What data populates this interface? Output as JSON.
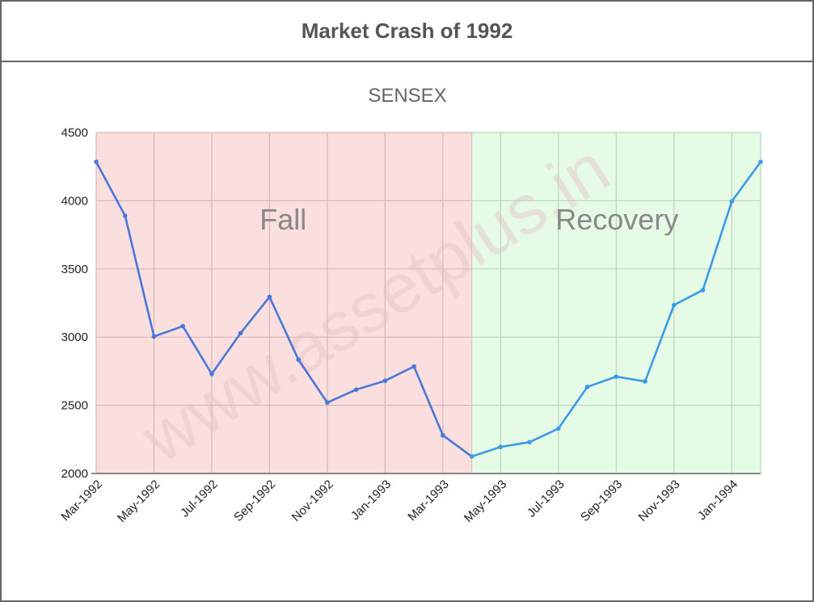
{
  "header": {
    "title": "Market Crash of 1992"
  },
  "watermark": "www.assetplus.in",
  "chart_data": {
    "type": "line",
    "title": "SENSEX",
    "xlabel": "",
    "ylabel": "",
    "ylim": [
      2000,
      4500
    ],
    "yticks": [
      2000,
      2500,
      3000,
      3500,
      4000,
      4500
    ],
    "x_tick_labels": [
      "Mar-1992",
      "May-1992",
      "Jul-1992",
      "Sep-1992",
      "Nov-1992",
      "Jan-1993",
      "Mar-1993",
      "May-1993",
      "Jul-1993",
      "Sep-1993",
      "Nov-1993",
      "Jan-1994"
    ],
    "x": [
      "Mar-1992",
      "Apr-1992",
      "May-1992",
      "Jun-1992",
      "Jul-1992",
      "Aug-1992",
      "Sep-1992",
      "Oct-1992",
      "Nov-1992",
      "Dec-1992",
      "Jan-1993",
      "Feb-1993",
      "Mar-1993",
      "Apr-1993",
      "May-1993",
      "Jun-1993",
      "Jul-1993",
      "Aug-1993",
      "Sep-1993",
      "Oct-1993",
      "Nov-1993",
      "Dec-1993",
      "Jan-1994",
      "Feb-1994"
    ],
    "values": [
      4285,
      3890,
      3005,
      3080,
      2730,
      3030,
      3295,
      2835,
      2520,
      2615,
      2680,
      2785,
      2280,
      2125,
      2195,
      2230,
      2330,
      2635,
      2710,
      2675,
      3235,
      3345,
      3995,
      4285
    ],
    "grid": true,
    "regions": [
      {
        "label": "Fall",
        "from": "Mar-1992",
        "to": "Apr-1993",
        "color": "#fbdfdf"
      },
      {
        "label": "Recovery",
        "from": "Apr-1993",
        "to": "Feb-1994",
        "color": "#e6fbe6"
      }
    ],
    "line_colors": {
      "fall": "#4a77d8",
      "recovery": "#3a9be8"
    }
  }
}
